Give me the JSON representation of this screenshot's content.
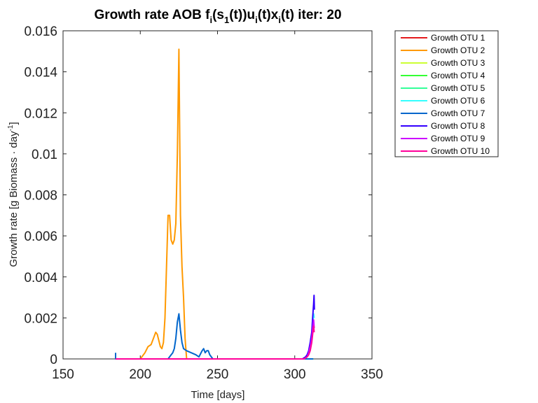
{
  "chart_data": {
    "type": "line",
    "title_parts": {
      "a": "Growth rate AOB f",
      "b": "i",
      "c": "(s",
      "d": "1",
      "e": "(t))u",
      "f": "i",
      "g": "(t)x",
      "h": "i",
      "k": "(t) iter: 20"
    },
    "xlabel": "Time [days]",
    "ylabel_parts": {
      "main": "Growth rate [g Biomass · day",
      "sup": "-1",
      "close": "]"
    },
    "xlim": [
      150,
      350
    ],
    "ylim": [
      0,
      0.016
    ],
    "xticks": [
      "150",
      "200",
      "250",
      "300",
      "350"
    ],
    "yticks": [
      "0",
      "0.002",
      "0.004",
      "0.006",
      "0.008",
      "0.01",
      "0.012",
      "0.014",
      "0.016"
    ],
    "grid": false,
    "legend_position": "outside-right",
    "series": [
      {
        "name": "Growth OTU 1",
        "color": "#e41a1c",
        "x": [
          184,
          312
        ],
        "y": [
          0,
          0
        ]
      },
      {
        "name": "Growth OTU 2",
        "color": "#ff9900",
        "x": [
          184,
          200,
          203,
          205,
          207,
          209,
          210,
          211,
          212,
          213,
          214,
          215,
          216,
          217,
          218,
          219,
          220,
          221,
          222,
          223,
          224,
          225,
          226,
          227,
          228,
          229,
          230,
          312
        ],
        "y": [
          0,
          0,
          0.0003,
          0.0006,
          0.0007,
          0.0011,
          0.0013,
          0.0012,
          0.0009,
          0.0006,
          0.0005,
          0.0008,
          0.002,
          0.0045,
          0.007,
          0.007,
          0.0058,
          0.0056,
          0.0058,
          0.0066,
          0.01,
          0.0151,
          0.007,
          0.0045,
          0.003,
          0.001,
          0,
          0
        ]
      },
      {
        "name": "Growth OTU 3",
        "color": "#ccff33",
        "x": [
          184,
          312
        ],
        "y": [
          0,
          0
        ]
      },
      {
        "name": "Growth OTU 4",
        "color": "#33ff33",
        "x": [
          184,
          312
        ],
        "y": [
          0,
          0
        ]
      },
      {
        "name": "Growth OTU 5",
        "color": "#33ff99",
        "x": [
          184,
          312
        ],
        "y": [
          0,
          0
        ]
      },
      {
        "name": "Growth OTU 6",
        "color": "#33ffff",
        "x": [
          184,
          306,
          308,
          309,
          310,
          311,
          311.6,
          312.2,
          312.6
        ],
        "y": [
          0,
          0,
          0.0001,
          0.0003,
          0.0006,
          0.0011,
          0.0016,
          0.0022,
          0.002
        ]
      },
      {
        "name": "Growth OTU 7",
        "color": "#0066cc",
        "x": [
          184,
          184,
          185,
          200,
          210,
          215,
          218,
          220,
          221,
          222,
          223,
          224,
          225,
          226,
          227,
          228,
          230,
          233,
          236,
          238,
          240,
          241,
          242,
          243,
          244,
          245,
          246,
          247,
          312
        ],
        "y": [
          0.0003,
          0,
          0,
          0,
          0,
          0,
          0,
          0.0002,
          0.0003,
          0.0005,
          0.001,
          0.0018,
          0.0022,
          0.0014,
          0.0008,
          0.0005,
          0.0004,
          0.0003,
          0.0002,
          0.0001,
          0.0004,
          0.0005,
          0.0003,
          0.0004,
          0.0004,
          0.0002,
          0.0001,
          0,
          0
        ]
      },
      {
        "name": "Growth OTU 8",
        "color": "#3300ff",
        "x": [
          184,
          305,
          307,
          308,
          309,
          310,
          311,
          311.6,
          312.2,
          312.5,
          312.7
        ],
        "y": [
          0,
          0,
          0.0001,
          0.0002,
          0.0004,
          0.0008,
          0.0013,
          0.002,
          0.0027,
          0.0031,
          0.0024
        ]
      },
      {
        "name": "Growth OTU 9",
        "color": "#cc00ff",
        "x": [
          184,
          306,
          308,
          309,
          310,
          311,
          311.6,
          312.2,
          312.6
        ],
        "y": [
          0,
          0,
          0.0001,
          0.0003,
          0.0006,
          0.001,
          0.0015,
          0.0019,
          0.0015
        ]
      },
      {
        "name": "Growth OTU 10",
        "color": "#ff0099",
        "x": [
          184,
          306,
          308,
          309,
          310,
          311,
          311.6,
          312.2,
          312.6
        ],
        "y": [
          0,
          0,
          0.0001,
          0.0002,
          0.0004,
          0.0008,
          0.0012,
          0.0016,
          0.0013
        ]
      }
    ]
  }
}
